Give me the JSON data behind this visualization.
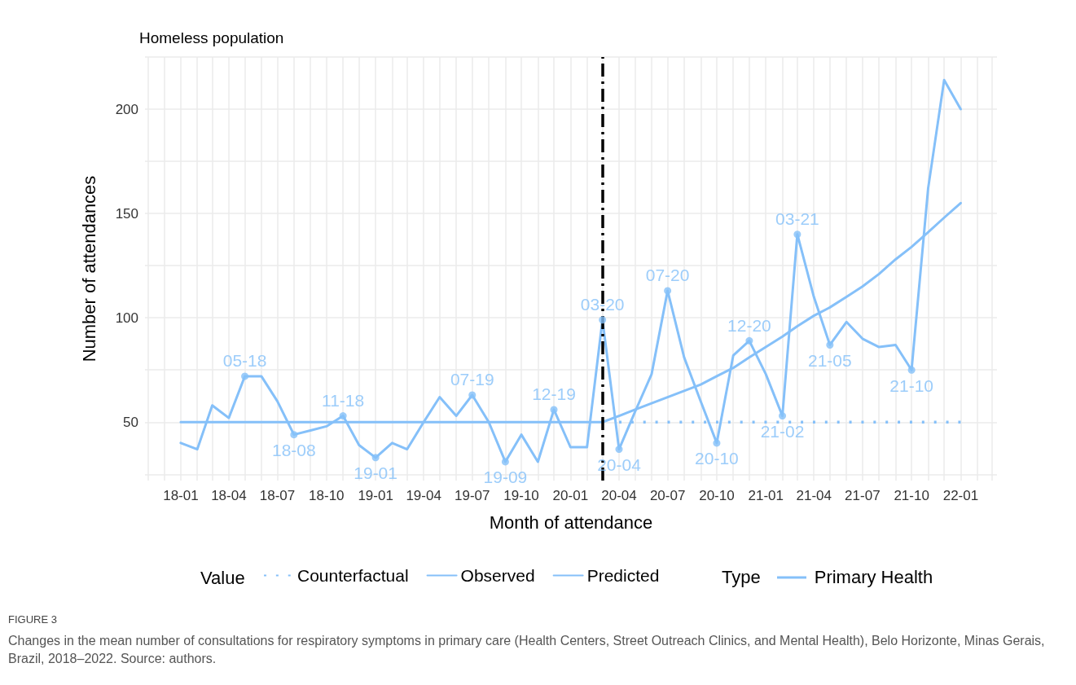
{
  "chart_data": {
    "type": "line",
    "title": "Homeless population",
    "xlabel": "Month of attendance",
    "ylabel": "Number of attendances",
    "legend_title": "Value",
    "series": [
      {
        "name": "Counterfactual",
        "color": "#85c0f9",
        "line_style": "dotted",
        "x": [
          "2020-04",
          "2022-01"
        ],
        "values": [
          50,
          50
        ]
      },
      {
        "name": "Observed",
        "color": "#85c0f9",
        "line_style": "solid",
        "x": [
          "2018-01",
          "2018-02",
          "2018-03",
          "2018-04",
          "2018-05",
          "2018-06",
          "2018-07",
          "2018-08",
          "2018-09",
          "2018-10",
          "2018-11",
          "2018-12",
          "2019-01",
          "2019-02",
          "2019-03",
          "2019-04",
          "2019-05",
          "2019-06",
          "2019-07",
          "2019-08",
          "2019-09",
          "2019-10",
          "2019-11",
          "2019-12",
          "2020-01",
          "2020-02",
          "2020-03",
          "2020-04",
          "2020-05",
          "2020-06",
          "2020-07",
          "2020-08",
          "2020-09",
          "2020-10",
          "2020-11",
          "2020-12",
          "2021-01",
          "2021-02",
          "2021-03",
          "2021-04",
          "2021-05",
          "2021-06",
          "2021-07",
          "2021-08",
          "2021-09",
          "2021-10",
          "2021-11",
          "2021-12",
          "2022-01"
        ],
        "values": [
          40,
          37,
          58,
          52,
          72,
          72,
          60,
          44,
          46,
          48,
          53,
          39,
          33,
          40,
          37,
          50,
          62,
          53,
          63,
          50,
          31,
          44,
          31,
          56,
          38,
          38,
          99,
          37,
          55,
          73,
          113,
          81,
          60,
          40,
          82,
          89,
          73,
          53,
          140,
          110,
          87,
          98,
          90,
          86,
          87,
          75,
          162,
          214,
          200
        ]
      },
      {
        "name": "Predicted",
        "color": "#85c0f9",
        "line_style": "solid",
        "x": [
          "2018-01",
          "2020-03",
          "2020-04",
          "2020-05",
          "2020-06",
          "2020-07",
          "2020-08",
          "2020-09",
          "2020-10",
          "2020-11",
          "2020-12",
          "2021-01",
          "2021-02",
          "2021-03",
          "2021-04",
          "2021-05",
          "2021-06",
          "2021-07",
          "2021-08",
          "2021-09",
          "2021-10",
          "2021-11",
          "2021-12",
          "2022-01"
        ],
        "values": [
          50,
          50,
          53,
          56,
          59,
          62,
          65,
          68,
          72,
          76,
          81,
          86,
          91,
          96,
          101,
          105,
          110,
          115,
          121,
          128,
          134,
          141,
          148,
          155
        ]
      }
    ],
    "xlim": [
      "2017-10-26",
      "2022-03-10"
    ],
    "xticks": [
      {
        "value": "2017-11",
        "label": null
      },
      {
        "value": "2017-12",
        "label": null
      },
      {
        "value": "2018-01",
        "label": "18-01"
      },
      {
        "value": "2018-02",
        "label": null
      },
      {
        "value": "2018-03",
        "label": null
      },
      {
        "value": "2018-04",
        "label": "18-04"
      },
      {
        "value": "2018-05",
        "label": null
      },
      {
        "value": "2018-06",
        "label": null
      },
      {
        "value": "2018-07",
        "label": "18-07"
      },
      {
        "value": "2018-08",
        "label": null
      },
      {
        "value": "2018-09",
        "label": null
      },
      {
        "value": "2018-10",
        "label": "18-10"
      },
      {
        "value": "2018-11",
        "label": null
      },
      {
        "value": "2018-12",
        "label": null
      },
      {
        "value": "2019-01",
        "label": "19-01"
      },
      {
        "value": "2019-02",
        "label": null
      },
      {
        "value": "2019-03",
        "label": null
      },
      {
        "value": "2019-04",
        "label": "19-04"
      },
      {
        "value": "2019-05",
        "label": null
      },
      {
        "value": "2019-06",
        "label": null
      },
      {
        "value": "2019-07",
        "label": "19-07"
      },
      {
        "value": "2019-08",
        "label": null
      },
      {
        "value": "2019-09",
        "label": null
      },
      {
        "value": "2019-10",
        "label": "19-10"
      },
      {
        "value": "2019-11",
        "label": null
      },
      {
        "value": "2019-12",
        "label": null
      },
      {
        "value": "2020-01",
        "label": "20-01"
      },
      {
        "value": "2020-02",
        "label": null
      },
      {
        "value": "2020-03",
        "label": null
      },
      {
        "value": "2020-04",
        "label": "20-04"
      },
      {
        "value": "2020-05",
        "label": null
      },
      {
        "value": "2020-06",
        "label": null
      },
      {
        "value": "2020-07",
        "label": "20-07"
      },
      {
        "value": "2020-08",
        "label": null
      },
      {
        "value": "2020-09",
        "label": null
      },
      {
        "value": "2020-10",
        "label": "20-10"
      },
      {
        "value": "2020-11",
        "label": null
      },
      {
        "value": "2020-12",
        "label": null
      },
      {
        "value": "2021-01",
        "label": "21-01"
      },
      {
        "value": "2021-02",
        "label": null
      },
      {
        "value": "2021-03",
        "label": null
      },
      {
        "value": "2021-04",
        "label": "21-04"
      },
      {
        "value": "2021-05",
        "label": null
      },
      {
        "value": "2021-06",
        "label": null
      },
      {
        "value": "2021-07",
        "label": "21-07"
      },
      {
        "value": "2021-08",
        "label": null
      },
      {
        "value": "2021-09",
        "label": null
      },
      {
        "value": "2021-10",
        "label": "21-10"
      },
      {
        "value": "2021-11",
        "label": null
      },
      {
        "value": "2021-12",
        "label": null
      },
      {
        "value": "2022-01",
        "label": "22-01"
      },
      {
        "value": "2022-02",
        "label": null
      },
      {
        "value": "2022-03",
        "label": null
      }
    ],
    "ylim": [
      22,
      225
    ],
    "yticks": [
      {
        "value": 25,
        "label": null
      },
      50,
      {
        "value": 75,
        "label": null
      },
      100,
      {
        "value": 125,
        "label": null
      },
      150,
      {
        "value": 175,
        "label": null
      },
      200,
      {
        "value": 225,
        "label": null
      }
    ],
    "grid": true,
    "legend": "bottom",
    "ref_lines": [
      {
        "axis": "x",
        "value": "2020-03",
        "color": "#000000",
        "line_style": "dashed"
      }
    ],
    "annotations": [
      "Type",
      "Primary Health",
      "FIGURE 3",
      "Changes in the mean number of consultations for respiratory symptoms in primary care (Health Centers, Street Outreach Clinics, and Mental Health), Belo Horizonte, Minas Gerais, Brazil, 2018–2022. Source: authors.",
      {
        "text": "05-18",
        "x": "2018-05",
        "y": 72
      },
      {
        "text": "18-08",
        "x": "2018-08",
        "y": 44
      },
      {
        "text": "11-18",
        "x": "2018-11",
        "y": 53
      },
      {
        "text": "19-01",
        "x": "2019-01",
        "y": 33
      },
      {
        "text": "07-19",
        "x": "2019-07",
        "y": 63
      },
      {
        "text": "19-09",
        "x": "2019-09",
        "y": 31
      },
      {
        "text": "12-19",
        "x": "2019-12",
        "y": 56
      },
      {
        "text": "03-20",
        "x": "2020-03",
        "y": 99
      },
      {
        "text": "20-04",
        "x": "2020-04",
        "y": 37
      },
      {
        "text": "07-20",
        "x": "2020-07",
        "y": 113
      },
      {
        "text": "20-10",
        "x": "2020-10",
        "y": 40
      },
      {
        "text": "12-20",
        "x": "2020-12",
        "y": 89
      },
      {
        "text": "21-02",
        "x": "2021-02",
        "y": 53
      },
      {
        "text": "03-21",
        "x": "2021-03",
        "y": 140
      },
      {
        "text": "21-05",
        "x": "2021-05",
        "y": 87
      },
      {
        "text": "21-10",
        "x": "2021-10",
        "y": 75
      }
    ]
  }
}
